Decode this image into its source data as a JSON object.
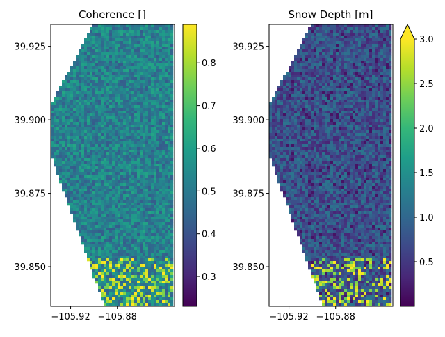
{
  "chart_data": [
    {
      "type": "heatmap",
      "title": "Coherence []",
      "xlabel": "",
      "ylabel": "",
      "xlim": [
        -105.937,
        -105.831
      ],
      "ylim": [
        39.8365,
        39.9325
      ],
      "x_ticks": [
        -105.92,
        -105.88
      ],
      "x_tick_labels": [
        "−105.92",
        "−105.88"
      ],
      "y_ticks": [
        39.85,
        39.875,
        39.9,
        39.925
      ],
      "y_tick_labels": [
        "39.850",
        "39.875",
        "39.900",
        "39.925"
      ],
      "footprint_lonlat": [
        [
          -105.937,
          39.905
        ],
        [
          -105.901,
          39.9325
        ],
        [
          -105.831,
          39.9325
        ],
        [
          -105.831,
          39.8365
        ],
        [
          -105.891,
          39.8365
        ],
        [
          -105.937,
          39.888
        ]
      ],
      "colormap": "viridis",
      "colorbar": {
        "vmin": 0.23,
        "vmax": 0.89,
        "ticks": [
          0.3,
          0.4,
          0.5,
          0.6,
          0.7,
          0.8
        ],
        "tick_labels": [
          "0.3",
          "0.4",
          "0.5",
          "0.6",
          "0.7",
          "0.8"
        ],
        "extend": "neither"
      },
      "typical_value": 0.52,
      "seed": 7
    },
    {
      "type": "heatmap",
      "title": "Snow Depth [m]",
      "xlabel": "",
      "ylabel": "",
      "xlim": [
        -105.937,
        -105.831
      ],
      "ylim": [
        39.8365,
        39.9325
      ],
      "x_ticks": [
        -105.92,
        -105.88
      ],
      "x_tick_labels": [
        "−105.92",
        "−105.88"
      ],
      "y_ticks": [
        39.85,
        39.875,
        39.9,
        39.925
      ],
      "y_tick_labels": [
        "39.850",
        "39.875",
        "39.900",
        "39.925"
      ],
      "footprint_lonlat": [
        [
          -105.937,
          39.905
        ],
        [
          -105.901,
          39.9325
        ],
        [
          -105.831,
          39.9325
        ],
        [
          -105.831,
          39.8365
        ],
        [
          -105.891,
          39.8365
        ],
        [
          -105.937,
          39.888
        ]
      ],
      "colormap": "viridis",
      "colorbar": {
        "vmin": 0.0,
        "vmax": 3.0,
        "ticks": [
          0.5,
          1.0,
          1.5,
          2.0,
          2.5,
          3.0
        ],
        "tick_labels": [
          "0.5",
          "1.0",
          "1.5",
          "2.0",
          "2.5",
          "3.0"
        ],
        "extend": "max"
      },
      "typical_value": 0.75,
      "seed": 13
    }
  ],
  "colors": {
    "viridis_stops": [
      "#440154",
      "#482878",
      "#3e4989",
      "#31688e",
      "#26828e",
      "#1f9e89",
      "#35b779",
      "#6ece58",
      "#b5de2b",
      "#fde725"
    ],
    "axis": "#000000",
    "background": "#ffffff"
  }
}
